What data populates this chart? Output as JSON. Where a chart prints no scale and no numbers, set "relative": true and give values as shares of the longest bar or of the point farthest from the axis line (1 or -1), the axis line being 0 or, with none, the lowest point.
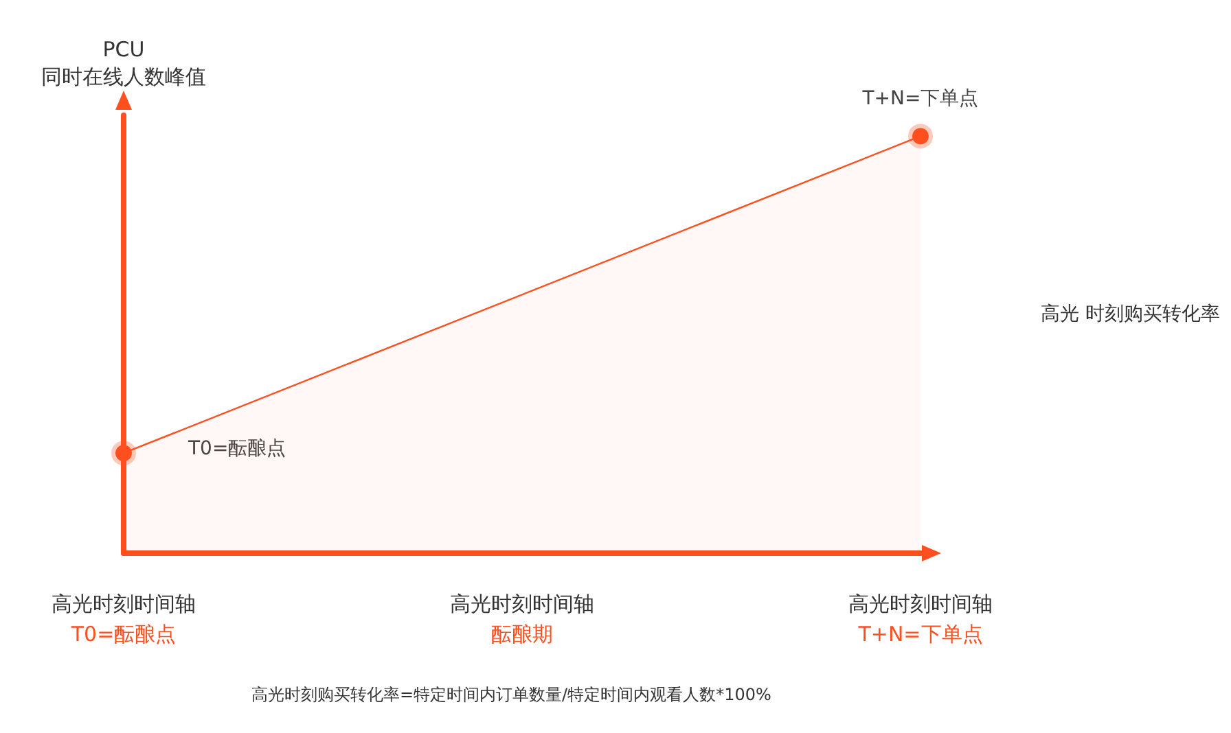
{
  "chart_data": {
    "type": "area",
    "relative": true,
    "ylabel": "PCU\n同时在线人数峰值",
    "categories": [
      "高光时刻时间轴T0=酝酿点",
      "高光时刻时间轴酝酿期",
      "高光时刻时间轴T+N=下单点"
    ],
    "series": [
      {
        "color": "#ff4f1f",
        "values": [
          0.24,
          null,
          1
        ]
      }
    ],
    "marker": "circle",
    "grid": false,
    "annotations": [
      "T0=酝酿点",
      {
        "text": "T+N=下单点",
        "x": "高光时刻时间轴T+N=下单点",
        "y": 1
      },
      "高光 时刻购买转化率",
      "高光时刻购买转化率=特定时间内订单数量/特定时间内观看人数*100%"
    ]
  }
}
